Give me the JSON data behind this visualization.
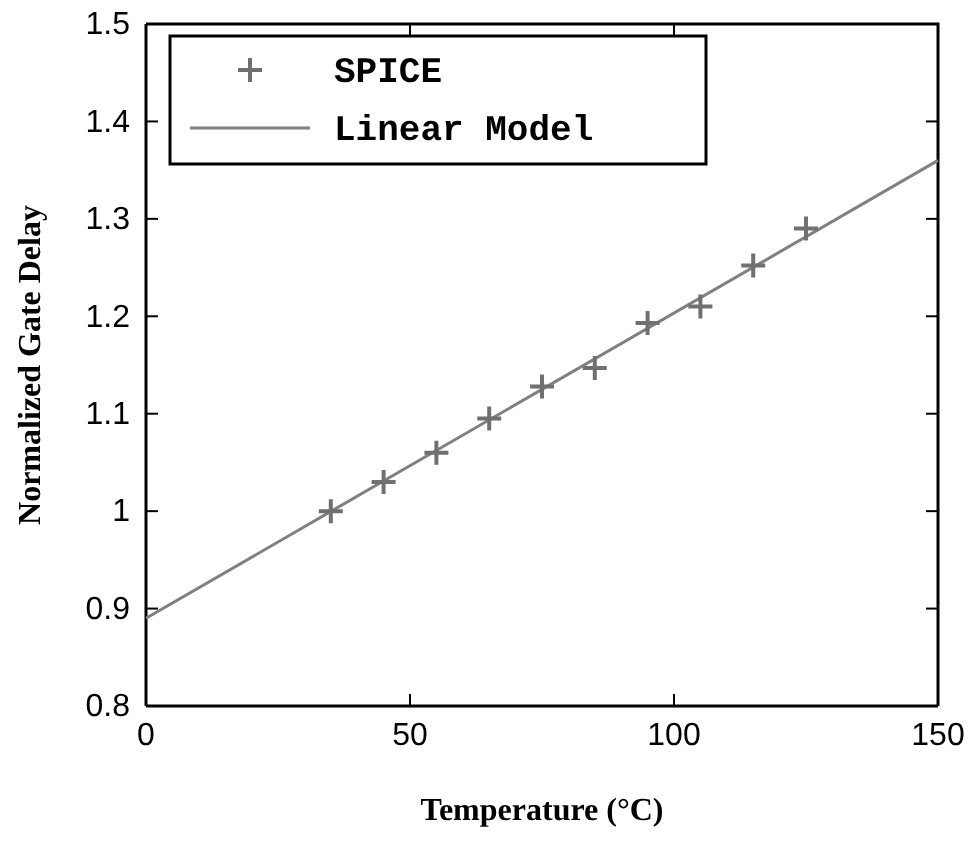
{
  "chart_data": {
    "type": "scatter",
    "xlabel": "Temperature (°C)",
    "ylabel": "Normalized Gate Delay",
    "xlim": [
      0,
      150
    ],
    "xticks": [
      0,
      50,
      100,
      150
    ],
    "ylim": [
      0.8,
      1.5
    ],
    "yticks": [
      0.8,
      0.9,
      1,
      1.1,
      1.2,
      1.3,
      1.4,
      1.5
    ],
    "legend": "top left",
    "grid": false,
    "series": [
      {
        "name": "SPICE",
        "marker": "cross",
        "color": "#707070",
        "x": [
          35,
          45,
          55,
          65,
          75,
          85,
          95,
          105,
          115,
          125
        ],
        "values": [
          1.0,
          1.03,
          1.06,
          1.095,
          1.128,
          1.147,
          1.193,
          1.21,
          1.252,
          1.29
        ]
      },
      {
        "name": "Linear Model",
        "type": "line",
        "line_style": "solid",
        "color": "#808080",
        "x": [
          0,
          150
        ],
        "values": [
          0.89,
          1.36
        ]
      }
    ]
  }
}
